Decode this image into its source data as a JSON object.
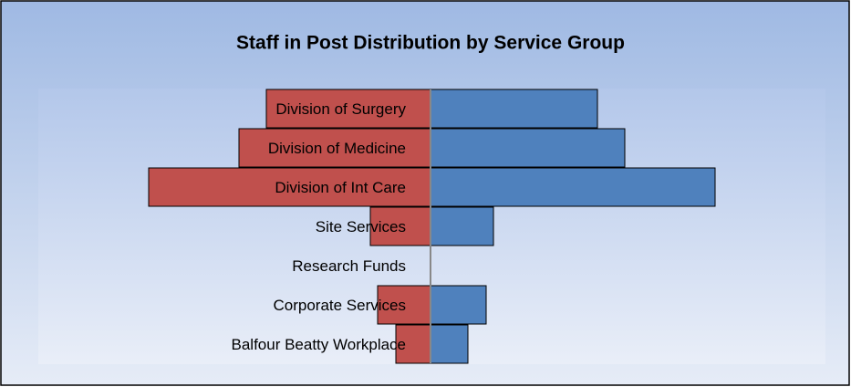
{
  "chart_data": {
    "type": "butterfly",
    "title": "Staff in Post Distribution by Service Group",
    "categories": [
      "Division of Surgery",
      "Division of Medicine",
      "Division of Int Care",
      "Site Services",
      "Research Funds",
      "Corporate Services",
      "Balfour Beatty Workplace"
    ],
    "series": [
      {
        "color": "#c0504d",
        "values": [
          -180,
          -210,
          -309,
          -66,
          0,
          -58,
          -38
        ]
      },
      {
        "color": "#4f81bd",
        "values": [
          183,
          213,
          312,
          69,
          0,
          61,
          41
        ]
      }
    ],
    "xlim": [
      -430,
      433
    ]
  }
}
